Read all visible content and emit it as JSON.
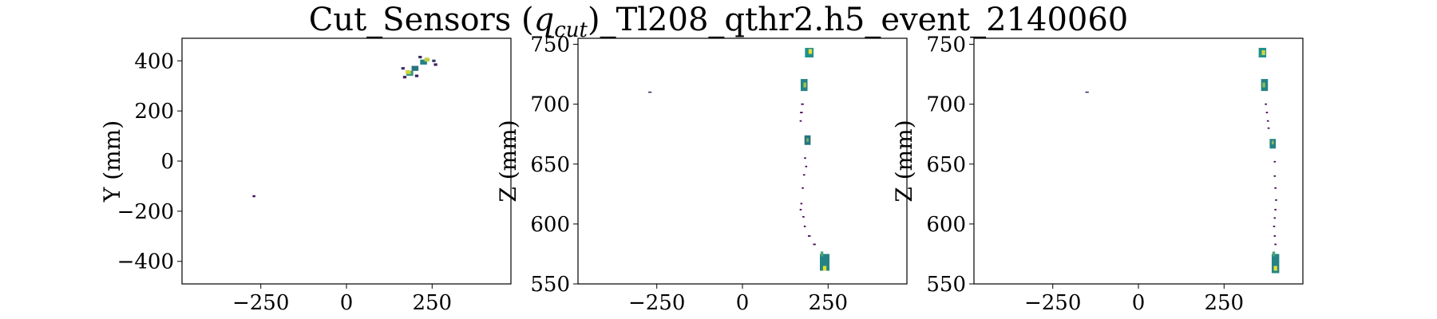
{
  "figure": {
    "title": "Cut_Sensors (q_cut)_Tl208_qthr2.h5_event_2140060",
    "title_prefix": "Cut_Sensors (",
    "title_q": "q",
    "title_sub": "cut",
    "title_suffix": ")_Tl208_qthr2.h5_event_2140060"
  },
  "colors": {
    "viridis_low": "#440154",
    "viridis_mid": "#21918c",
    "viridis_high": "#fde725",
    "axis": "#000000"
  },
  "chart_data": [
    {
      "type": "heatmap",
      "xlabel": "",
      "ylabel": "Y (mm)",
      "xlim": [
        -480,
        480
      ],
      "ylim": [
        -490,
        490
      ],
      "xticks": [
        -250,
        0,
        250
      ],
      "xtick_labels": [
        "−250",
        "0",
        "250"
      ],
      "yticks": [
        -400,
        -200,
        0,
        200,
        400
      ],
      "ytick_labels": [
        "−400",
        "−200",
        "0",
        "200",
        "400"
      ],
      "cells": [
        {
          "x": 185,
          "y": 350,
          "w": 20,
          "h": 20,
          "v": 0.55
        },
        {
          "x": 180,
          "y": 355,
          "w": 15,
          "h": 15,
          "v": 0.9
        },
        {
          "x": 200,
          "y": 370,
          "w": 20,
          "h": 20,
          "v": 0.4
        },
        {
          "x": 170,
          "y": 335,
          "w": 10,
          "h": 10,
          "v": 0.1
        },
        {
          "x": 205,
          "y": 340,
          "w": 10,
          "h": 10,
          "v": 0.1
        },
        {
          "x": 165,
          "y": 370,
          "w": 10,
          "h": 10,
          "v": 0.15
        },
        {
          "x": 225,
          "y": 395,
          "w": 20,
          "h": 20,
          "v": 0.45
        },
        {
          "x": 235,
          "y": 405,
          "w": 15,
          "h": 15,
          "v": 0.85
        },
        {
          "x": 255,
          "y": 400,
          "w": 10,
          "h": 10,
          "v": 0.2
        },
        {
          "x": 215,
          "y": 415,
          "w": 10,
          "h": 10,
          "v": 0.15
        },
        {
          "x": 260,
          "y": 385,
          "w": 10,
          "h": 10,
          "v": 0.1
        },
        {
          "x": -270,
          "y": -140,
          "w": 8,
          "h": 8,
          "v": 0.05
        }
      ]
    },
    {
      "type": "heatmap",
      "xlabel": "",
      "ylabel": "Z (mm)",
      "xlim": [
        -480,
        480
      ],
      "ylim": [
        550,
        755
      ],
      "xticks": [
        -250,
        0,
        250
      ],
      "xtick_labels": [
        "−250",
        "0",
        "250"
      ],
      "yticks": [
        550,
        600,
        650,
        700,
        750
      ],
      "ytick_labels": [
        "550",
        "600",
        "650",
        "700",
        "750"
      ],
      "cells": [
        {
          "x": 195,
          "y": 743,
          "w": 25,
          "h": 8,
          "v": 0.5
        },
        {
          "x": 198,
          "y": 744,
          "w": 10,
          "h": 4,
          "v": 0.95
        },
        {
          "x": 180,
          "y": 716,
          "w": 20,
          "h": 10,
          "v": 0.45
        },
        {
          "x": 182,
          "y": 716,
          "w": 8,
          "h": 4,
          "v": 0.8
        },
        {
          "x": 190,
          "y": 670,
          "w": 18,
          "h": 8,
          "v": 0.4
        },
        {
          "x": 190,
          "y": 670,
          "w": 6,
          "h": 3,
          "v": 0.7
        },
        {
          "x": 240,
          "y": 568,
          "w": 28,
          "h": 14,
          "v": 0.45
        },
        {
          "x": 240,
          "y": 563,
          "w": 10,
          "h": 4,
          "v": 0.95
        },
        {
          "x": 232,
          "y": 575,
          "w": 8,
          "h": 4,
          "v": 0.6
        },
        {
          "x": -270,
          "y": 710,
          "w": 10,
          "h": 1,
          "v": 0.1
        },
        {
          "x": 175,
          "y": 700,
          "w": 8,
          "h": 1.2,
          "v": 0.02
        },
        {
          "x": 172,
          "y": 693,
          "w": 8,
          "h": 1.2,
          "v": 0.02
        },
        {
          "x": 170,
          "y": 686,
          "w": 6,
          "h": 1.2,
          "v": 0.02
        },
        {
          "x": 183,
          "y": 655,
          "w": 6,
          "h": 1.2,
          "v": 0.02
        },
        {
          "x": 186,
          "y": 648,
          "w": 6,
          "h": 1.2,
          "v": 0.02
        },
        {
          "x": 180,
          "y": 641,
          "w": 6,
          "h": 1.2,
          "v": 0.02
        },
        {
          "x": 176,
          "y": 630,
          "w": 6,
          "h": 1.2,
          "v": 0.02
        },
        {
          "x": 172,
          "y": 617,
          "w": 6,
          "h": 1.2,
          "v": 0.02
        },
        {
          "x": 170,
          "y": 612,
          "w": 6,
          "h": 1.2,
          "v": 0.02
        },
        {
          "x": 178,
          "y": 606,
          "w": 6,
          "h": 1.2,
          "v": 0.02
        },
        {
          "x": 182,
          "y": 598,
          "w": 6,
          "h": 1.2,
          "v": 0.02
        },
        {
          "x": 195,
          "y": 590,
          "w": 8,
          "h": 1.2,
          "v": 0.02
        },
        {
          "x": 210,
          "y": 583,
          "w": 8,
          "h": 1.2,
          "v": 0.02
        }
      ]
    },
    {
      "type": "heatmap",
      "xlabel": "",
      "ylabel": "Z (mm)",
      "xlim": [
        -480,
        480
      ],
      "ylim": [
        550,
        755
      ],
      "xticks": [
        -250,
        0,
        250
      ],
      "xtick_labels": [
        "−250",
        "0",
        "250"
      ],
      "yticks": [
        550,
        600,
        650,
        700,
        750
      ],
      "ytick_labels": [
        "550",
        "600",
        "650",
        "700",
        "750"
      ],
      "cells": [
        {
          "x": 362,
          "y": 743,
          "w": 22,
          "h": 8,
          "v": 0.5
        },
        {
          "x": 365,
          "y": 743,
          "w": 10,
          "h": 4,
          "v": 0.9
        },
        {
          "x": 368,
          "y": 716,
          "w": 20,
          "h": 10,
          "v": 0.45
        },
        {
          "x": 366,
          "y": 716,
          "w": 8,
          "h": 4,
          "v": 0.75
        },
        {
          "x": 392,
          "y": 667,
          "w": 18,
          "h": 8,
          "v": 0.45
        },
        {
          "x": 392,
          "y": 668,
          "w": 6,
          "h": 3,
          "v": 0.75
        },
        {
          "x": 400,
          "y": 567,
          "w": 22,
          "h": 16,
          "v": 0.45
        },
        {
          "x": 400,
          "y": 563,
          "w": 10,
          "h": 4,
          "v": 0.95
        },
        {
          "x": 395,
          "y": 575,
          "w": 8,
          "h": 4,
          "v": 0.6
        },
        {
          "x": -150,
          "y": 710,
          "w": 10,
          "h": 1,
          "v": 0.1
        },
        {
          "x": 372,
          "y": 700,
          "w": 6,
          "h": 1.2,
          "v": 0.02
        },
        {
          "x": 375,
          "y": 693,
          "w": 6,
          "h": 1.2,
          "v": 0.02
        },
        {
          "x": 378,
          "y": 686,
          "w": 6,
          "h": 1.2,
          "v": 0.02
        },
        {
          "x": 380,
          "y": 680,
          "w": 6,
          "h": 1.2,
          "v": 0.02
        },
        {
          "x": 398,
          "y": 652,
          "w": 6,
          "h": 1.2,
          "v": 0.02
        },
        {
          "x": 398,
          "y": 640,
          "w": 6,
          "h": 1.2,
          "v": 0.02
        },
        {
          "x": 400,
          "y": 630,
          "w": 6,
          "h": 1.2,
          "v": 0.02
        },
        {
          "x": 402,
          "y": 620,
          "w": 6,
          "h": 1.2,
          "v": 0.02
        },
        {
          "x": 400,
          "y": 612,
          "w": 6,
          "h": 1.2,
          "v": 0.02
        },
        {
          "x": 398,
          "y": 605,
          "w": 6,
          "h": 1.2,
          "v": 0.02
        },
        {
          "x": 396,
          "y": 598,
          "w": 6,
          "h": 1.2,
          "v": 0.02
        },
        {
          "x": 398,
          "y": 590,
          "w": 6,
          "h": 1.2,
          "v": 0.02
        },
        {
          "x": 400,
          "y": 583,
          "w": 6,
          "h": 1.2,
          "v": 0.02
        }
      ]
    }
  ]
}
